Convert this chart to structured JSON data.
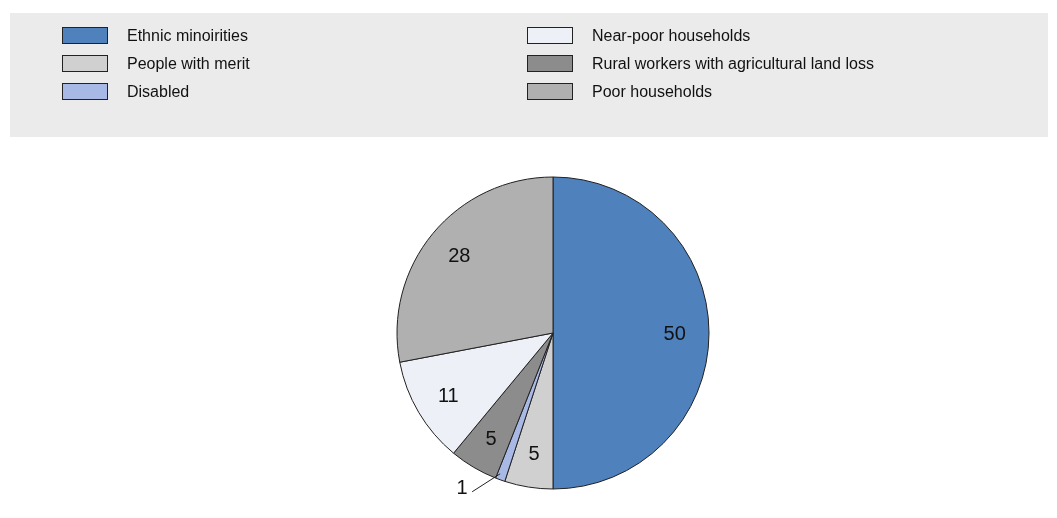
{
  "chart_data": {
    "type": "pie",
    "categories": [
      "Ethnic minoirities",
      "People with merit",
      "Disabled",
      "Rural workers with agricultural land loss",
      "Near-poor households",
      "Poor households"
    ],
    "values": [
      50,
      5,
      1,
      5,
      11,
      28
    ],
    "colors": [
      "#4f81bd",
      "#d0d0d0",
      "#a9b9e6",
      "#8c8c8c",
      "#eef0f8",
      "#b0b0b0"
    ],
    "data_labels": true,
    "legend": "top"
  }
}
